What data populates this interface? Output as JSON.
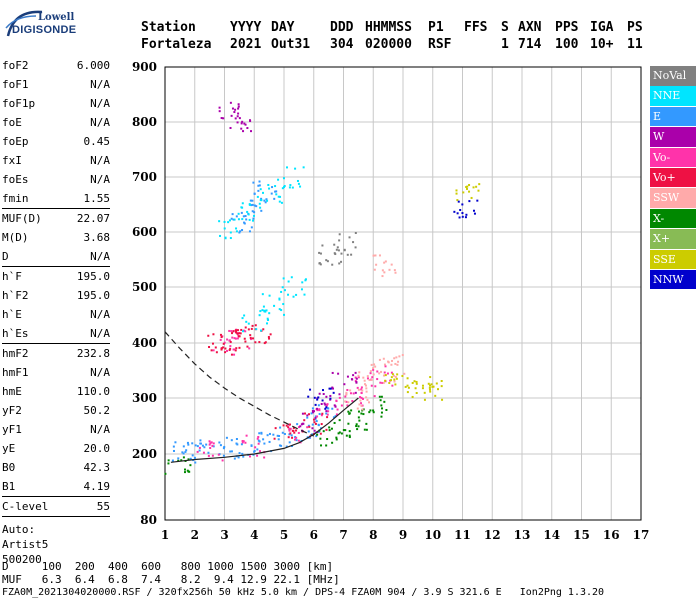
{
  "logo": {
    "line1": "Lowell",
    "line2": "DIGISONDE"
  },
  "header": {
    "row1": [
      "Station",
      "YYYY",
      "DAY",
      "DDD",
      "HHMMSS",
      "P1",
      "FFS",
      "S",
      "AXN",
      "PPS",
      "IGA",
      "PS"
    ],
    "row2": [
      "Fortaleza",
      "2021",
      "Out31",
      "304",
      "020000",
      "RSF",
      "1",
      "714",
      "100",
      "10+",
      "11"
    ]
  },
  "params": {
    "group1": [
      {
        "label": "foF2",
        "value": "6.000"
      },
      {
        "label": "foF1",
        "value": "N/A"
      },
      {
        "label": "foF1p",
        "value": "N/A"
      },
      {
        "label": "foE",
        "value": "N/A"
      },
      {
        "label": "foEp",
        "value": "0.45"
      },
      {
        "label": "fxI",
        "value": "N/A"
      },
      {
        "label": "foEs",
        "value": "N/A"
      },
      {
        "label": "fmin",
        "value": "1.55"
      }
    ],
    "group2": [
      {
        "label": "MUF(D)",
        "value": "22.07"
      },
      {
        "label": "M(D)",
        "value": "3.68"
      },
      {
        "label": "D",
        "value": "N/A"
      }
    ],
    "group3": [
      {
        "label": "h`F",
        "value": "195.0"
      },
      {
        "label": "h`F2",
        "value": "195.0"
      },
      {
        "label": "h`E",
        "value": "N/A"
      },
      {
        "label": "h`Es",
        "value": "N/A"
      }
    ],
    "group4": [
      {
        "label": "hmF2",
        "value": "232.8"
      },
      {
        "label": "hmF1",
        "value": "N/A"
      },
      {
        "label": "hmE",
        "value": "110.0"
      },
      {
        "label": "yF2",
        "value": "50.2"
      },
      {
        "label": "yF1",
        "value": "N/A"
      },
      {
        "label": "yE",
        "value": "20.0"
      },
      {
        "label": "B0",
        "value": "42.3"
      },
      {
        "label": "B1",
        "value": "4.19"
      }
    ],
    "group5": [
      {
        "label": "C-level",
        "value": "55"
      }
    ],
    "auto": [
      "Auto:",
      "Artist5",
      "500200"
    ]
  },
  "legend": [
    {
      "label": "NoVal",
      "color": "#808080"
    },
    {
      "label": "NNE",
      "color": "#00e5ff"
    },
    {
      "label": "E",
      "color": "#3399ff"
    },
    {
      "label": "W",
      "color": "#aa00aa"
    },
    {
      "label": "Vo-",
      "color": "#ff33aa"
    },
    {
      "label": "Vo+",
      "color": "#ee1144"
    },
    {
      "label": "SSW",
      "color": "#ffaaaa"
    },
    {
      "label": "X-",
      "color": "#008800"
    },
    {
      "label": "X+",
      "color": "#88bb55"
    },
    {
      "label": "SSE",
      "color": "#cccc00"
    },
    {
      "label": "NNW",
      "color": "#0000cc"
    }
  ],
  "footer": {
    "d_row": "D     100  200  400  600   800 1000 1500 3000 [km]",
    "muf_row": "MUF   6.3  6.4  6.8  7.4   8.2  9.4 12.9 22.1 [MHz]",
    "file_row": "FZA0M_2021304020000.RSF / 320fx256h 50 kHz 5.0 km / DPS-4 FZA0M 904 / 3.9 S 321.6 E   Ion2Png 1.3.20"
  },
  "chart_data": {
    "type": "scatter",
    "xlim": [
      1,
      17
    ],
    "ylim": [
      80,
      900
    ],
    "x_ticks": [
      1,
      2,
      3,
      4,
      5,
      6,
      7,
      8,
      9,
      10,
      11,
      12,
      13,
      14,
      15,
      16,
      17
    ],
    "y_ticks": [
      80,
      200,
      300,
      400,
      500,
      600,
      700,
      800,
      900
    ],
    "grid": true,
    "legend_placement": "right",
    "series": [
      {
        "name": "E",
        "color": "#3399ff",
        "points": [
          [
            1.6,
            205
          ],
          [
            2.2,
            210
          ],
          [
            3.0,
            212
          ],
          [
            3.8,
            215
          ],
          [
            4.5,
            220
          ],
          [
            5.2,
            232
          ],
          [
            5.8,
            250
          ],
          [
            6.3,
            270
          ],
          [
            4.0,
            640
          ],
          [
            4.3,
            680
          ],
          [
            3.6,
            620
          ]
        ]
      },
      {
        "name": "Vo-",
        "color": "#ff33aa",
        "points": [
          [
            2.5,
            205
          ],
          [
            4.0,
            215
          ],
          [
            5.5,
            240
          ],
          [
            6.5,
            280
          ],
          [
            7.2,
            300
          ],
          [
            7.8,
            320
          ],
          [
            8.2,
            340
          ],
          [
            3.0,
            400
          ],
          [
            3.5,
            410
          ]
        ]
      },
      {
        "name": "Vo+",
        "color": "#ee1144",
        "points": [
          [
            2.8,
            400
          ],
          [
            3.2,
            405
          ],
          [
            3.6,
            410
          ],
          [
            4.2,
            420
          ],
          [
            5.0,
            240
          ],
          [
            6.0,
            255
          ]
        ]
      },
      {
        "name": "NNE",
        "color": "#00e5ff",
        "points": [
          [
            3.2,
            610
          ],
          [
            3.8,
            640
          ],
          [
            4.5,
            670
          ],
          [
            5.2,
            700
          ],
          [
            4.0,
            440
          ],
          [
            4.6,
            470
          ],
          [
            5.3,
            500
          ]
        ]
      },
      {
        "name": "X-",
        "color": "#008800",
        "points": [
          [
            1.4,
            180
          ],
          [
            6.5,
            230
          ],
          [
            7.0,
            245
          ],
          [
            7.5,
            262
          ],
          [
            8.0,
            285
          ]
        ]
      },
      {
        "name": "SSW",
        "color": "#ffaaaa",
        "points": [
          [
            7.4,
            300
          ],
          [
            7.9,
            330
          ],
          [
            8.3,
            350
          ],
          [
            8.6,
            360
          ],
          [
            8.4,
            540
          ]
        ]
      },
      {
        "name": "SSE",
        "color": "#cccc00",
        "points": [
          [
            9.5,
            320
          ],
          [
            10.0,
            318
          ],
          [
            8.7,
            330
          ],
          [
            11.1,
            675
          ]
        ]
      },
      {
        "name": "W",
        "color": "#aa00aa",
        "points": [
          [
            5.9,
            260
          ],
          [
            6.4,
            290
          ],
          [
            7.0,
            330
          ],
          [
            3.5,
            800
          ],
          [
            3.2,
            820
          ]
        ]
      },
      {
        "name": "NNW",
        "color": "#0000cc",
        "points": [
          [
            11.1,
            640
          ],
          [
            6.2,
            300
          ]
        ]
      },
      {
        "name": "NoVal",
        "color": "#808080",
        "points": [
          [
            6.5,
            560
          ],
          [
            7.0,
            580
          ]
        ]
      }
    ],
    "profile_curve": {
      "style": "solid",
      "points": [
        [
          1.2,
          185
        ],
        [
          2.0,
          190
        ],
        [
          3.0,
          194
        ],
        [
          4.0,
          200
        ],
        [
          5.0,
          210
        ],
        [
          5.5,
          220
        ],
        [
          6.0,
          235
        ],
        [
          6.5,
          255
        ],
        [
          7.0,
          278
        ],
        [
          7.5,
          300
        ]
      ]
    },
    "dashed_curve": {
      "style": "dashed",
      "points": [
        [
          1.0,
          420
        ],
        [
          1.5,
          390
        ],
        [
          2.0,
          362
        ],
        [
          2.5,
          338
        ],
        [
          3.0,
          318
        ],
        [
          3.5,
          300
        ],
        [
          4.0,
          285
        ],
        [
          4.5,
          270
        ],
        [
          5.0,
          257
        ],
        [
          5.5,
          244
        ],
        [
          6.0,
          232
        ]
      ]
    }
  }
}
